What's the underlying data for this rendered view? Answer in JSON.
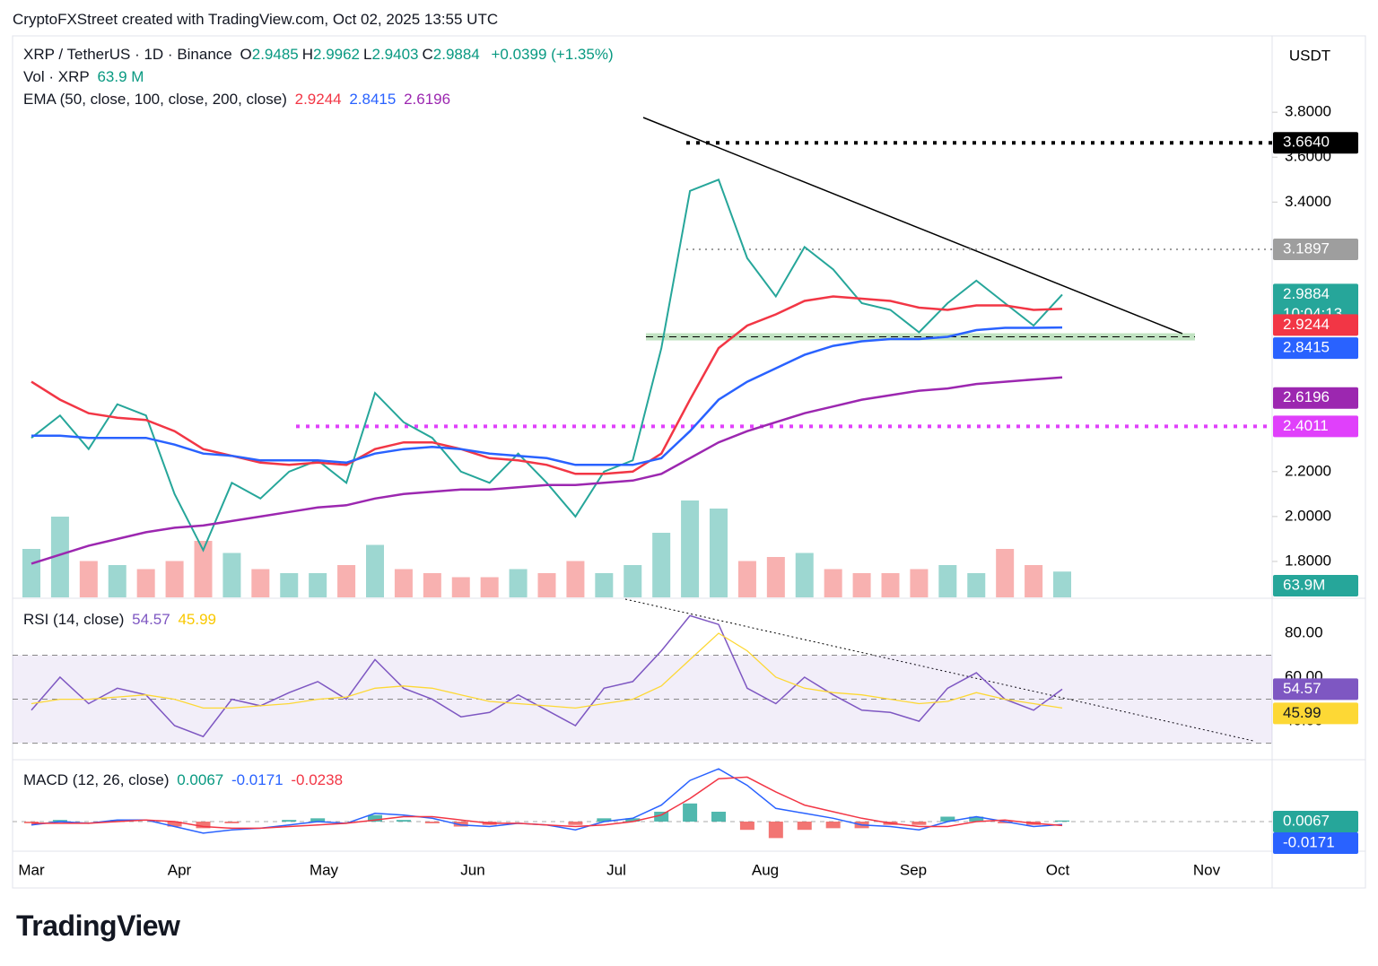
{
  "header": {
    "credit": "CryptoFXStreet created with TradingView.com, Oct 02, 2025 13:55 UTC",
    "logo": "TradingView"
  },
  "chart_data": {
    "type": "line",
    "symbol": "XRP / TetherUS · 1D · Binance",
    "ohlc": [
      {
        "name": "O",
        "value": 2.9485
      },
      {
        "name": "H",
        "value": 2.9962
      },
      {
        "name": "L",
        "value": 2.9403
      },
      {
        "name": "C",
        "value": 2.9884
      }
    ],
    "change": "+0.0399 (+1.35%)",
    "currency": "USDT",
    "countdown": "10:04:13",
    "categories": [
      "Mar",
      "Apr",
      "May",
      "Jun",
      "Jul",
      "Aug",
      "Sep",
      "Oct",
      "Nov"
    ],
    "ylim": [
      1.64,
      4.14
    ],
    "yticks": [
      {
        "value": 3.8,
        "label": "3.8000"
      },
      {
        "value": 3.6,
        "label": "3.6000"
      },
      {
        "value": 3.4,
        "label": "3.4000"
      },
      {
        "value": 2.2,
        "label": "2.2000"
      },
      {
        "value": 2.0,
        "label": "2.0000"
      },
      {
        "value": 1.8,
        "label": "1.8000"
      }
    ],
    "close": {
      "color": "#26a69a",
      "values": [
        2.35,
        2.45,
        2.3,
        2.5,
        2.45,
        2.1,
        1.85,
        2.15,
        2.08,
        2.2,
        2.25,
        2.15,
        2.55,
        2.42,
        2.35,
        2.2,
        2.15,
        2.28,
        2.15,
        2.0,
        2.2,
        2.25,
        2.75,
        3.45,
        3.5,
        3.15,
        2.98,
        3.2,
        3.1,
        2.95,
        2.92,
        2.82,
        2.95,
        3.05,
        2.95,
        2.85,
        2.9884
      ]
    },
    "ema": {
      "title": "EMA (50, close, 100, close, 200, close)",
      "series": [
        {
          "color": "#f23645",
          "values": [
            2.6,
            2.52,
            2.46,
            2.44,
            2.43,
            2.38,
            2.3,
            2.27,
            2.24,
            2.23,
            2.24,
            2.23,
            2.3,
            2.33,
            2.33,
            2.3,
            2.26,
            2.25,
            2.23,
            2.19,
            2.19,
            2.2,
            2.28,
            2.52,
            2.75,
            2.85,
            2.9,
            2.96,
            2.98,
            2.97,
            2.96,
            2.93,
            2.92,
            2.94,
            2.94,
            2.92,
            2.9244
          ]
        },
        {
          "color": "#2962ff",
          "values": [
            2.36,
            2.36,
            2.35,
            2.35,
            2.35,
            2.32,
            2.28,
            2.27,
            2.25,
            2.25,
            2.25,
            2.24,
            2.28,
            2.3,
            2.31,
            2.3,
            2.28,
            2.27,
            2.26,
            2.23,
            2.23,
            2.23,
            2.26,
            2.38,
            2.52,
            2.6,
            2.66,
            2.72,
            2.76,
            2.78,
            2.79,
            2.79,
            2.8,
            2.83,
            2.84,
            2.84,
            2.8415
          ]
        },
        {
          "color": "#9c27b0",
          "values": [
            1.79,
            1.83,
            1.87,
            1.9,
            1.93,
            1.95,
            1.96,
            1.98,
            2.0,
            2.02,
            2.04,
            2.05,
            2.08,
            2.1,
            2.11,
            2.12,
            2.12,
            2.13,
            2.14,
            2.14,
            2.15,
            2.16,
            2.19,
            2.26,
            2.33,
            2.38,
            2.42,
            2.46,
            2.49,
            2.52,
            2.54,
            2.56,
            2.57,
            2.59,
            2.6,
            2.61,
            2.6196
          ]
        }
      ]
    },
    "volume": {
      "title": "Vol · XRP",
      "label": "63.9 M",
      "badge": "63.9M",
      "color": "#26a69a",
      "values": [
        120,
        200,
        90,
        80,
        70,
        90,
        140,
        110,
        70,
        60,
        60,
        80,
        130,
        70,
        60,
        50,
        50,
        70,
        60,
        90,
        60,
        80,
        160,
        240,
        220,
        90,
        100,
        110,
        70,
        60,
        60,
        70,
        80,
        60,
        120,
        80,
        63.9
      ]
    },
    "levels": [
      {
        "value": 3.664,
        "label": "3.6640",
        "color": "#000000"
      },
      {
        "value": 3.1897,
        "label": "3.1897",
        "color": "#9e9e9e"
      },
      {
        "value": 2.4011,
        "label": "2.4011",
        "color": "#e040fb"
      }
    ],
    "support": {
      "value": 2.8,
      "color": "#4caf50"
    },
    "rsi": {
      "title": "RSI (14, close)",
      "ylim": [
        22.9,
        95.5
      ],
      "yticks": [
        {
          "value": 80,
          "label": "80.00"
        },
        {
          "value": 60,
          "label": "60.00"
        },
        {
          "value": 40,
          "label": "40.00"
        }
      ],
      "bands": [
        70,
        50,
        30
      ],
      "series": [
        {
          "color": "#7e57c2",
          "values": [
            45,
            60,
            48,
            55,
            52,
            38,
            33,
            50,
            47,
            53,
            58,
            50,
            68,
            55,
            50,
            42,
            44,
            52,
            45,
            38,
            55,
            58,
            72,
            88,
            84,
            55,
            48,
            60,
            52,
            45,
            44,
            40,
            55,
            62,
            50,
            45,
            54.57
          ]
        },
        {
          "color": "#fdd835",
          "values": [
            48,
            50,
            50,
            51,
            52,
            50,
            46,
            46,
            47,
            48,
            50,
            51,
            55,
            56,
            55,
            52,
            49,
            48,
            47,
            46,
            48,
            50,
            56,
            68,
            80,
            72,
            60,
            55,
            53,
            52,
            50,
            48,
            49,
            53,
            50,
            48,
            45.99
          ]
        }
      ]
    },
    "macd": {
      "title": "MACD (12, 26, close)",
      "ylim": [
        -0.174,
        0.37
      ],
      "histogram": {
        "values": [
          -0.01,
          0.01,
          0.0,
          0.01,
          0.0,
          -0.03,
          -0.04,
          -0.01,
          0.0,
          0.01,
          0.02,
          0.0,
          0.04,
          0.01,
          -0.01,
          -0.03,
          -0.02,
          0.0,
          0.0,
          -0.02,
          0.02,
          0.02,
          0.06,
          0.11,
          0.06,
          -0.05,
          -0.1,
          -0.05,
          -0.04,
          -0.04,
          -0.02,
          -0.02,
          0.03,
          0.03,
          -0.01,
          -0.02,
          0.0067
        ]
      },
      "series": [
        {
          "color": "#2962ff",
          "values": [
            -0.02,
            0.0,
            -0.01,
            0.01,
            0.01,
            -0.03,
            -0.07,
            -0.05,
            -0.04,
            -0.02,
            0.0,
            -0.01,
            0.05,
            0.04,
            0.02,
            -0.02,
            -0.03,
            -0.01,
            -0.02,
            -0.05,
            0.0,
            0.02,
            0.1,
            0.25,
            0.32,
            0.22,
            0.08,
            0.05,
            0.02,
            -0.02,
            -0.03,
            -0.05,
            0.0,
            0.03,
            0.0,
            -0.03,
            -0.0171
          ]
        },
        {
          "color": "#f23645",
          "values": [
            -0.01,
            -0.01,
            -0.01,
            0.0,
            0.01,
            0.0,
            -0.03,
            -0.04,
            -0.04,
            -0.03,
            -0.02,
            -0.01,
            0.01,
            0.03,
            0.03,
            0.01,
            -0.01,
            -0.01,
            -0.02,
            -0.03,
            -0.02,
            0.0,
            0.04,
            0.14,
            0.26,
            0.27,
            0.18,
            0.1,
            0.06,
            0.02,
            -0.01,
            -0.03,
            -0.03,
            0.0,
            0.01,
            -0.01,
            -0.0238
          ]
        }
      ]
    }
  }
}
